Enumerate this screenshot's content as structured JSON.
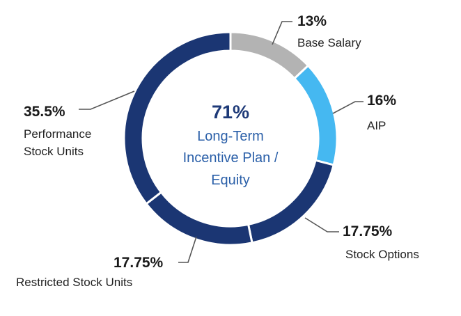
{
  "chart_data": {
    "type": "pie",
    "style": "donut",
    "center": {
      "value": "71%",
      "label_lines": [
        "Long-Term",
        "Incentive Plan /",
        "Equity"
      ]
    },
    "slices": [
      {
        "value_label": "13%",
        "value": 13,
        "label_lines": [
          "Base Salary"
        ],
        "color": "#b3b3b3"
      },
      {
        "value_label": "16%",
        "value": 16,
        "label_lines": [
          "AIP"
        ],
        "color": "#45b8f1"
      },
      {
        "value_label": "17.75%",
        "value": 17.75,
        "label_lines": [
          "Stock Options"
        ],
        "color": "#1b3673"
      },
      {
        "value_label": "17.75%",
        "value": 17.75,
        "label_lines": [
          "Restricted Stock Units"
        ],
        "color": "#1b3673"
      },
      {
        "value_label": "35.5%",
        "value": 35.5,
        "label_lines": [
          "Performance",
          "Stock Units"
        ],
        "color": "#1b3673"
      }
    ]
  }
}
